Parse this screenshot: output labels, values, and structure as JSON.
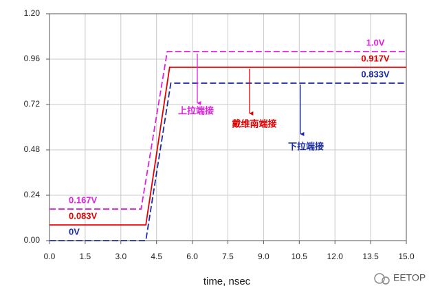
{
  "chart_data": {
    "type": "line",
    "xlabel": "time, nsec",
    "xlim": [
      0,
      15
    ],
    "xticks": [
      {
        "value": 0,
        "label": "0.0"
      },
      1.5,
      {
        "value": 3,
        "label": "3.0"
      },
      4.5,
      {
        "value": 6,
        "label": "6.0"
      },
      7.5,
      {
        "value": 9,
        "label": "9.0"
      },
      10.5,
      {
        "value": 12,
        "label": "12.0"
      },
      13.5,
      {
        "value": 15,
        "label": "15.0"
      }
    ],
    "ylim": [
      0,
      1.2
    ],
    "yticks": [
      {
        "value": 0,
        "label": "0.00"
      },
      0.24,
      0.48,
      0.72,
      0.96,
      {
        "value": 1.2,
        "label": "1.20"
      }
    ],
    "grid": true,
    "series": [
      {
        "color": "#e020e0",
        "dash": true,
        "x": [
          0,
          3.85,
          4.95,
          15
        ],
        "values": [
          0.167,
          0.167,
          1.0,
          1.0
        ],
        "value_labels": [
          "0.167V",
          null,
          null,
          "1.0V"
        ]
      },
      {
        "color": "#e00000",
        "dash": false,
        "x": [
          0,
          4.05,
          5.05,
          15
        ],
        "values": [
          0.083,
          0.083,
          0.917,
          0.917
        ],
        "value_labels": [
          "0.083V",
          null,
          null,
          "0.917V"
        ]
      },
      {
        "color": "#1a2aa8",
        "dash": true,
        "x": [
          0,
          4.05,
          5.1,
          15
        ],
        "values": [
          0,
          0,
          0.833,
          0.833
        ],
        "value_labels": [
          "0V",
          null,
          null,
          "0.833V"
        ]
      }
    ],
    "annotations": [
      {
        "text": "上拉端接",
        "color": "#e020e0"
      },
      {
        "text": "戴维南端接",
        "color": "#e00000"
      },
      {
        "text": "下拉端接",
        "color": "#1a2aa8"
      }
    ],
    "watermark": "EETOP"
  }
}
